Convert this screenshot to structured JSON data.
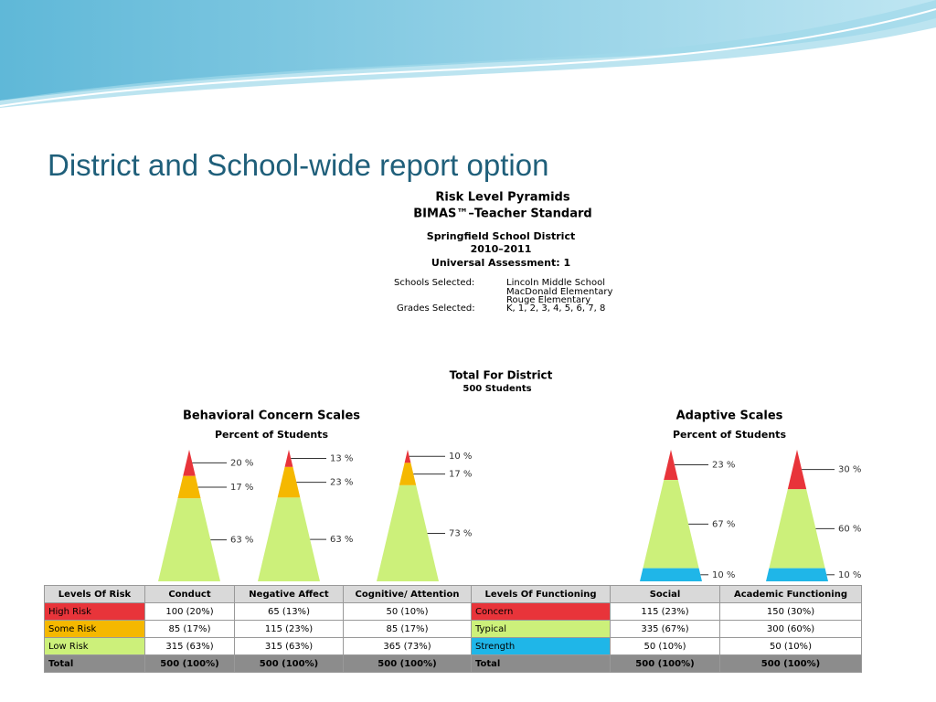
{
  "slide_title": "District and School-wide report option",
  "report": {
    "title": "Risk Level Pyramids",
    "subtitle": "BIMAS™–Teacher Standard",
    "district": "Springfield School District",
    "year": "2010–2011",
    "assessment": "Universal Assessment: 1",
    "schools_label": "Schools Selected:",
    "schools": [
      "Lincoln Middle School",
      "MacDonald Elementary",
      "Rouge Elementary"
    ],
    "grades_label": "Grades Selected:",
    "grades": "K, 1, 2, 3, 4, 5, 6, 7, 8",
    "total_title": "Total For District",
    "total_students": "500 Students"
  },
  "groups": [
    {
      "title": "Behavioral Concern Scales",
      "subtitle": "Percent of Students",
      "pyramids": [
        {
          "values": [
            20,
            17,
            63
          ],
          "value_labels": [
            "20 %",
            "17 %",
            "63 %"
          ],
          "colors": [
            "#e8343a",
            "#f5b800",
            "#ccf07a"
          ]
        },
        {
          "values": [
            13,
            23,
            63
          ],
          "value_labels": [
            "13 %",
            "23 %",
            "63 %"
          ],
          "colors": [
            "#e8343a",
            "#f5b800",
            "#ccf07a"
          ]
        },
        {
          "values": [
            10,
            17,
            73
          ],
          "value_labels": [
            "10 %",
            "17 %",
            "73 %"
          ],
          "colors": [
            "#e8343a",
            "#f5b800",
            "#ccf07a"
          ]
        }
      ]
    },
    {
      "title": "Adaptive Scales",
      "subtitle": "Percent of Students",
      "pyramids": [
        {
          "values": [
            23,
            67,
            10
          ],
          "value_labels": [
            "23 %",
            "67 %",
            "10 %"
          ],
          "colors": [
            "#e8343a",
            "#ccf07a",
            "#1fb6e8"
          ]
        },
        {
          "values": [
            30,
            60,
            10
          ],
          "value_labels": [
            "30 %",
            "60 %",
            "10 %"
          ],
          "colors": [
            "#e8343a",
            "#ccf07a",
            "#1fb6e8"
          ]
        }
      ]
    }
  ],
  "table": {
    "headers": [
      "Levels Of Risk",
      "Conduct",
      "Negative Affect",
      "Cognitive/ Attention",
      "Levels Of Functioning",
      "Social",
      "Academic Functioning"
    ],
    "rows": [
      {
        "cells": [
          "High Risk",
          "100 (20%)",
          "65 (13%)",
          "50 (10%)",
          "Concern",
          "115 (23%)",
          "150 (30%)"
        ],
        "colors": [
          "#e8343a",
          "#e8343a"
        ]
      },
      {
        "cells": [
          "Some Risk",
          "85 (17%)",
          "115 (23%)",
          "85 (17%)",
          "Typical",
          "335 (67%)",
          "300 (60%)"
        ],
        "colors": [
          "#f5b800",
          "#ccf07a"
        ]
      },
      {
        "cells": [
          "Low Risk",
          "315 (63%)",
          "315 (63%)",
          "365 (73%)",
          "Strength",
          "50 (10%)",
          "50 (10%)"
        ],
        "colors": [
          "#ccf07a",
          "#1fb6e8"
        ]
      },
      {
        "cells": [
          "Total",
          "500 (100%)",
          "500 (100%)",
          "500 (100%)",
          "Total",
          "500 (100%)",
          "500 (100%)"
        ],
        "colors": [
          "#8c8c8c",
          "#8c8c8c"
        ]
      }
    ]
  }
}
